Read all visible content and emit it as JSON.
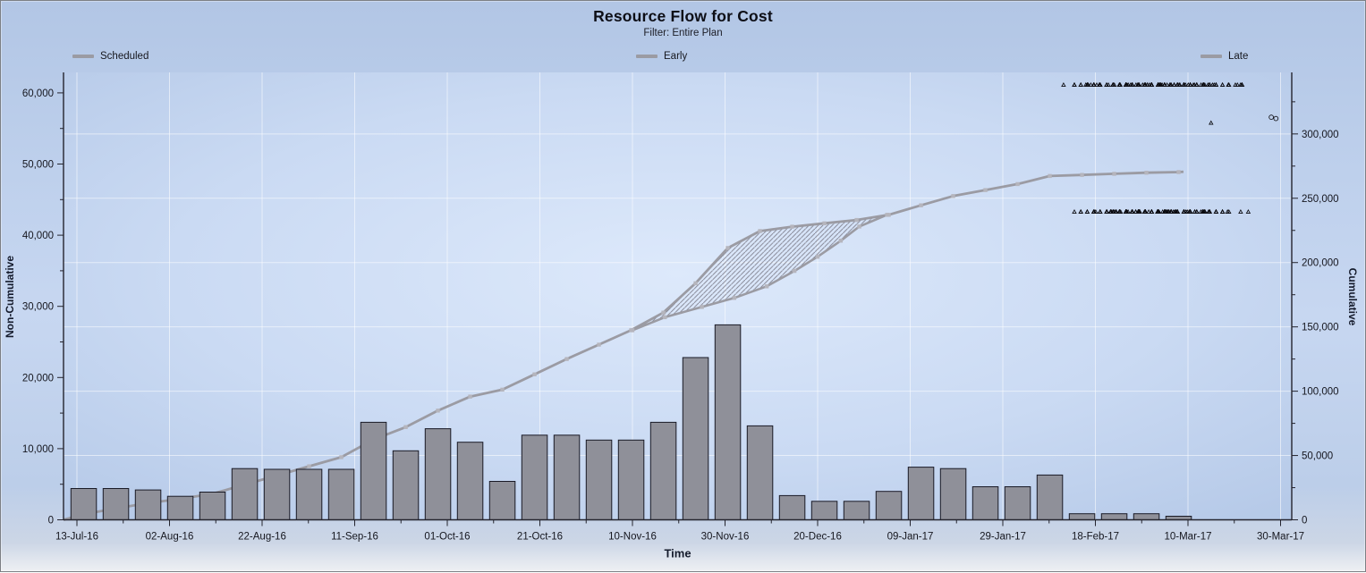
{
  "title": "Resource Flow for Cost",
  "subtitle": "Filter: Entire Plan",
  "legend": {
    "swatch_color": "#9b9ba3",
    "items": [
      {
        "label": "Scheduled"
      },
      {
        "label": "Early"
      },
      {
        "label": "Late"
      }
    ]
  },
  "colors": {
    "bar_fill": "#8f9099",
    "bar_stroke": "#191a26",
    "curve": "#9b9ba3",
    "curve_marker": "#b5b5bd",
    "hatch_line": "#7f7f8c",
    "grid": "rgba(255,255,255,0.55)",
    "axis": "#24242e",
    "text": "#15161e",
    "scatter": "#0b0b10",
    "plot_center": "#dde9fb",
    "plot_edge": "#b4c8e7"
  },
  "chart_data": {
    "type": "combo",
    "title": "Resource Flow for Cost",
    "subtitle": "Filter: Entire Plan",
    "x_axis": {
      "title": "Time",
      "tick_interval_days": 20,
      "tick_labels": [
        "13-Jul-16",
        "02-Aug-16",
        "22-Aug-16",
        "11-Sep-16",
        "01-Oct-16",
        "21-Oct-16",
        "10-Nov-16",
        "30-Nov-16",
        "20-Dec-16",
        "09-Jan-17",
        "29-Jan-17",
        "18-Feb-17",
        "10-Mar-17",
        "30-Mar-17"
      ]
    },
    "y_left": {
      "title": "Non-Cumulative",
      "range": [
        0,
        62500
      ],
      "major_step": 10000,
      "minor_step": 5000,
      "tick_labels": [
        "0",
        "10,000",
        "20,000",
        "30,000",
        "40,000",
        "50,000",
        "60,000"
      ]
    },
    "y_right": {
      "title": "Cumulative",
      "range": [
        0,
        325000
      ],
      "major_step": 50000,
      "minor_step": 25000,
      "tick_labels": [
        "0",
        "50,000",
        "100,000",
        "150,000",
        "200,000",
        "250,000",
        "300,000"
      ]
    },
    "bars": {
      "name": "Weekly cost (non-cumulative, early dates)",
      "axis": "left",
      "bucket": "weekly",
      "first_week_start_approx": "14-Jul-16",
      "values": [
        4400,
        4400,
        4200,
        3300,
        3900,
        7200,
        7100,
        7100,
        7100,
        13700,
        9700,
        12800,
        10900,
        5400,
        11900,
        11900,
        11200,
        11200,
        13700,
        22800,
        27400,
        13200,
        3400,
        2600,
        2600,
        4000,
        7400,
        7200,
        4650,
        4650,
        6300,
        850,
        850,
        850,
        500
      ]
    },
    "cumulative_curve": {
      "name": "Scheduled / Early cumulative",
      "axis": "right",
      "derivation": "running total of weekly bar values",
      "end_value_approx": 270000,
      "end_date_approx": "09-Mar-17"
    },
    "late_curve": {
      "name": "Late cumulative (lower envelope, hatched band vs Early)",
      "axis": "right",
      "points_day_value": [
        [
          120,
          147400
        ],
        [
          127,
          157500
        ],
        [
          135,
          165500
        ],
        [
          142,
          172500
        ],
        [
          149,
          181500
        ],
        [
          155,
          193500
        ],
        [
          160,
          204500
        ],
        [
          165,
          217000
        ],
        [
          169,
          228000
        ],
        [
          175,
          237100
        ]
      ],
      "band_style": "45-degree forward-slash hatch between Early and Late curves"
    },
    "envelope_segment": {
      "upper_is_cumulative_between_weeks": [
        17,
        25
      ],
      "split_date_approx": "10-Nov-16",
      "merge_date_approx": "04-Jan-17"
    },
    "risk_scatter": {
      "marker": "open-triangle",
      "approx_point_count": 520,
      "value_center_approx": 286000,
      "value_sigma_approx": 20000,
      "date_center_day_offset_from_13Jul16": 233,
      "date_sigma_days": 11,
      "extra_circle_markers_day_value": [
        [
          258,
          313000
        ],
        [
          259,
          312000
        ]
      ]
    }
  }
}
